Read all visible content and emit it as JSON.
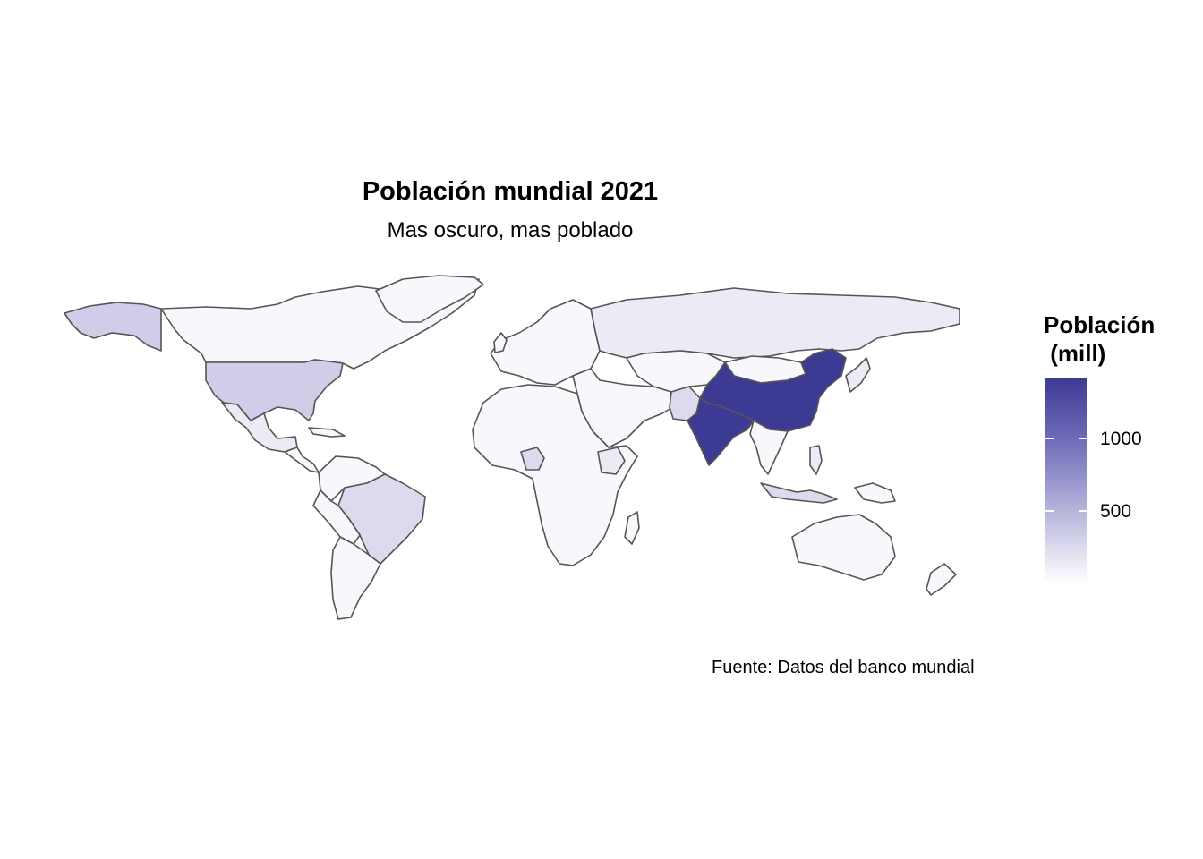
{
  "title": "Población mundial 2021",
  "subtitle": "Mas oscuro, mas poblado",
  "caption": "Fuente: Datos del banco mundial",
  "legend": {
    "title": "Población\n (mill)",
    "ticks": [
      {
        "label": "1000",
        "value": 1000
      },
      {
        "label": "500",
        "value": 500
      }
    ],
    "color_low": "#ffffff",
    "color_high": "#3d3a94"
  },
  "colors": {
    "very_low": "#f8f8fc",
    "low": "#ebeaf5",
    "mid_low": "#dcdaee",
    "mid": "#cfcde7",
    "high": "#3d3a94",
    "border": "#555555"
  }
}
